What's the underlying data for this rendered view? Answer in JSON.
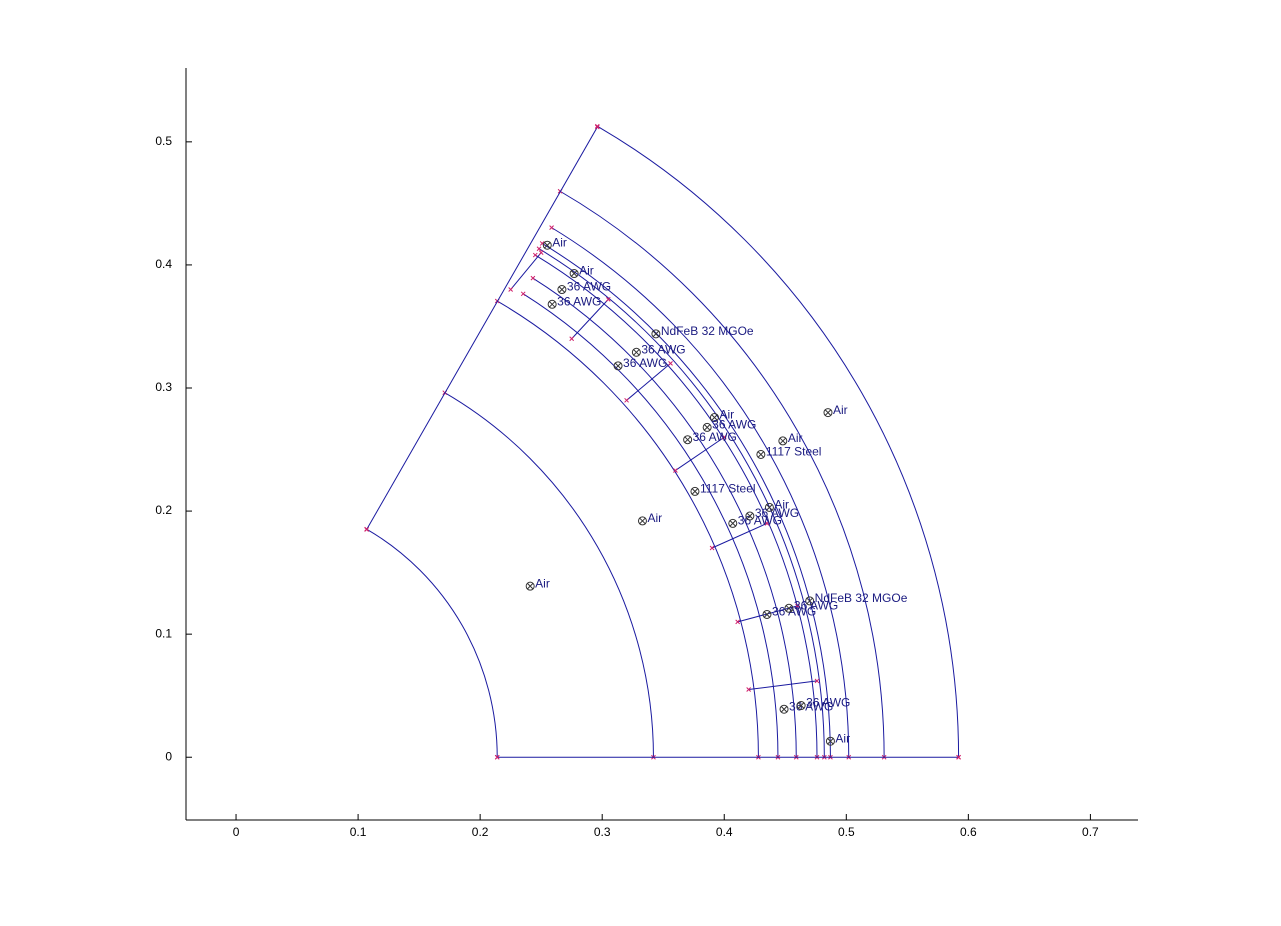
{
  "chart_data": {
    "type": "geometry",
    "xlim": [
      -0.041,
      0.739
    ],
    "ylim": [
      -0.051,
      0.56
    ],
    "xticks": [
      0,
      0.1,
      0.2,
      0.3,
      0.4,
      0.5,
      0.6,
      0.7
    ],
    "yticks": [
      0,
      0.1,
      0.2,
      0.3,
      0.4,
      0.5
    ],
    "line_color": "#1a1aa0",
    "node_color": "#d0206a",
    "arcs": [
      {
        "r": 0.214,
        "a0": 0,
        "a1": 60
      },
      {
        "r": 0.342,
        "a0": 0,
        "a1": 60
      },
      {
        "r": 0.428,
        "a0": 0,
        "a1": 60
      },
      {
        "r": 0.444,
        "a0": 0,
        "a1": 58
      },
      {
        "r": 0.459,
        "a0": 0,
        "a1": 58
      },
      {
        "r": 0.476,
        "a0": 0,
        "a1": 59
      },
      {
        "r": 0.482,
        "a0": 0,
        "a1": 59
      },
      {
        "r": 0.487,
        "a0": 0,
        "a1": 59
      },
      {
        "r": 0.502,
        "a0": 0,
        "a1": 59
      },
      {
        "r": 0.531,
        "a0": 0,
        "a1": 60
      },
      {
        "r": 0.592,
        "a0": 0,
        "a1": 60
      }
    ],
    "lines": [
      [
        0.107,
        0.185,
        0.296,
        0.512
      ],
      [
        0.214,
        0,
        0.592,
        0
      ],
      [
        0.42,
        0.055,
        0.476,
        0.062
      ],
      [
        0.411,
        0.11,
        0.46,
        0.123
      ],
      [
        0.39,
        0.17,
        0.435,
        0.19
      ],
      [
        0.36,
        0.233,
        0.4,
        0.26
      ],
      [
        0.32,
        0.29,
        0.356,
        0.32
      ],
      [
        0.275,
        0.34,
        0.305,
        0.372
      ],
      [
        0.225,
        0.38,
        0.25,
        0.41
      ]
    ],
    "labels": [
      {
        "text": "Air",
        "x": 0.241,
        "y": 0.139
      },
      {
        "text": "Air",
        "x": 0.333,
        "y": 0.192
      },
      {
        "text": "Air",
        "x": 0.485,
        "y": 0.28
      },
      {
        "text": "Air",
        "x": 0.255,
        "y": 0.416
      },
      {
        "text": "Air",
        "x": 0.277,
        "y": 0.393
      },
      {
        "text": "36 AWG",
        "x": 0.259,
        "y": 0.368
      },
      {
        "text": "36 AWG",
        "x": 0.267,
        "y": 0.38
      },
      {
        "text": "NdFeB 32 MGOe",
        "x": 0.344,
        "y": 0.344
      },
      {
        "text": "36 AWG",
        "x": 0.313,
        "y": 0.318
      },
      {
        "text": "36 AWG",
        "x": 0.328,
        "y": 0.329
      },
      {
        "text": "Air",
        "x": 0.392,
        "y": 0.276
      },
      {
        "text": "36 AWG",
        "x": 0.37,
        "y": 0.258
      },
      {
        "text": "36 AWG",
        "x": 0.386,
        "y": 0.268
      },
      {
        "text": "Air",
        "x": 0.448,
        "y": 0.257
      },
      {
        "text": "1117 Steel",
        "x": 0.43,
        "y": 0.246
      },
      {
        "text": "1117 Steel",
        "x": 0.376,
        "y": 0.216
      },
      {
        "text": "Air",
        "x": 0.437,
        "y": 0.203
      },
      {
        "text": "36 AWG",
        "x": 0.407,
        "y": 0.19
      },
      {
        "text": "36 AWG",
        "x": 0.421,
        "y": 0.196
      },
      {
        "text": "NdFeB 32 MGOe",
        "x": 0.47,
        "y": 0.127
      },
      {
        "text": "36 AWG",
        "x": 0.435,
        "y": 0.116
      },
      {
        "text": "36 AWG",
        "x": 0.453,
        "y": 0.121
      },
      {
        "text": "36 AWG",
        "x": 0.449,
        "y": 0.039
      },
      {
        "text": "36 AWG",
        "x": 0.463,
        "y": 0.042
      },
      {
        "text": "Air",
        "x": 0.487,
        "y": 0.013
      }
    ]
  }
}
